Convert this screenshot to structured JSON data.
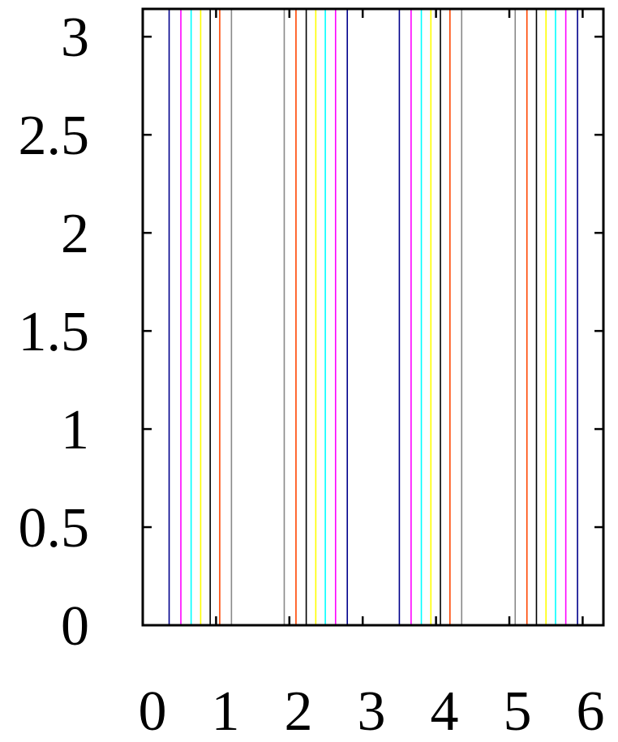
{
  "chart_data": {
    "type": "line",
    "title": "",
    "xlabel": "",
    "ylabel": "",
    "xlim": [
      0,
      6.283
    ],
    "ylim": [
      0,
      3.1416
    ],
    "x_ticks": [
      "0",
      "1",
      "2",
      "3",
      "4",
      "5",
      "6"
    ],
    "y_ticks": [
      "0",
      "0.5",
      "1",
      "1.5",
      "2",
      "2.5",
      "3"
    ],
    "grid": false,
    "legend": "none",
    "series": [
      {
        "color": "#00008b",
        "x": [
          0.36,
          2.79,
          3.5,
          5.93
        ]
      },
      {
        "color": "#ff00ff",
        "x": [
          0.52,
          2.63,
          3.66,
          5.77
        ]
      },
      {
        "color": "#00ffff",
        "x": [
          0.66,
          2.49,
          3.8,
          5.63
        ]
      },
      {
        "color": "#ffff00",
        "x": [
          0.79,
          2.36,
          3.93,
          5.5
        ]
      },
      {
        "color": "#000000",
        "x": [
          0.92,
          2.23,
          4.06,
          5.37
        ]
      },
      {
        "color": "#ff4500",
        "x": [
          1.05,
          2.09,
          4.19,
          5.24
        ]
      },
      {
        "color": "#888888",
        "x": [
          1.21,
          1.93,
          4.35,
          5.08
        ]
      }
    ]
  }
}
